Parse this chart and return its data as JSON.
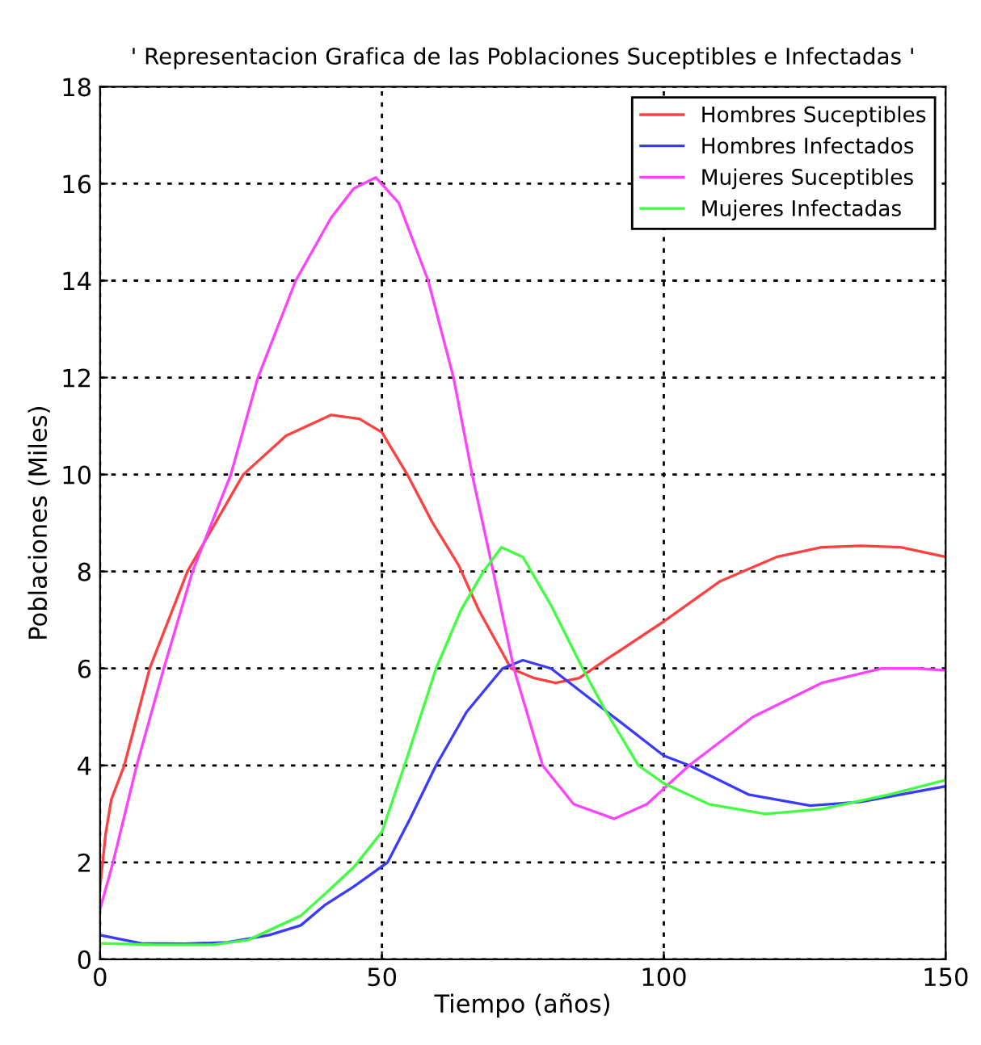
{
  "chart_data": {
    "type": "line",
    "title": "' Representacion Grafica de las Poblaciones Suceptibles e Infectadas '",
    "xlabel": "Tiempo (años)",
    "ylabel": "Poblaciones (Miles)",
    "xlim": [
      0,
      150
    ],
    "ylim": [
      0,
      18
    ],
    "xticks": [
      0,
      50,
      100,
      150
    ],
    "yticks": [
      0,
      2,
      4,
      6,
      8,
      10,
      12,
      14,
      16,
      18
    ],
    "grid": true,
    "legend": "top right",
    "line_style": "solid",
    "marker": "none",
    "series": [
      {
        "name": "Hombres Suceptibles",
        "color": "#ff4040",
        "x": [
          0,
          1,
          2,
          4.3,
          8.8,
          15.5,
          25.4,
          33,
          41,
          46,
          50,
          54.5,
          59,
          63.6,
          67.2,
          72.9,
          77,
          80.8,
          85,
          90,
          100,
          110,
          120,
          128,
          135,
          142,
          150
        ],
        "values": [
          1.5,
          2.6,
          3.3,
          4,
          6,
          8,
          10,
          10.8,
          11.23,
          11.15,
          10.87,
          10,
          9,
          8.13,
          7.2,
          6,
          5.8,
          5.7,
          5.8,
          6.2,
          6.97,
          7.8,
          8.3,
          8.5,
          8.53,
          8.5,
          8.3
        ]
      },
      {
        "name": "Hombres Infectados",
        "color": "#3a3aff",
        "x": [
          0,
          7.3,
          15,
          22.6,
          30,
          35.6,
          40,
          45,
          51,
          55,
          59.6,
          65,
          71.4,
          75,
          80,
          90,
          100,
          104.5,
          115,
          126,
          135,
          150
        ],
        "values": [
          0.5,
          0.33,
          0.32,
          0.35,
          0.5,
          0.7,
          1.13,
          1.5,
          2,
          2.9,
          4,
          5.1,
          6,
          6.17,
          6,
          5.1,
          4.2,
          4,
          3.4,
          3.17,
          3.25,
          3.57
        ]
      },
      {
        "name": "Mujeres Suceptibles",
        "color": "#ff40ff",
        "x": [
          0,
          2.3,
          6.5,
          11.3,
          16.4,
          23.2,
          28,
          34.7,
          41,
          45,
          48.9,
          53,
          58.2,
          62.7,
          66,
          69.5,
          73.4,
          78.5,
          84,
          91.2,
          97,
          104.5,
          115.8,
          128,
          138.7,
          145,
          150
        ],
        "values": [
          1.03,
          2,
          4,
          6,
          8,
          10,
          12,
          14,
          15.3,
          15.9,
          16.13,
          15.6,
          14,
          12,
          10,
          8.13,
          6,
          4,
          3.2,
          2.9,
          3.2,
          4,
          5,
          5.7,
          6,
          6,
          5.96
        ]
      },
      {
        "name": "Mujeres Infectadas",
        "color": "#40ff40",
        "x": [
          0,
          10,
          20,
          26.3,
          35.6,
          40,
          45,
          50,
          54,
          59.6,
          64,
          68,
          71.2,
          75,
          80,
          85.6,
          89.3,
          95.5,
          100,
          108,
          118,
          128,
          140,
          150
        ],
        "values": [
          0.33,
          0.3,
          0.3,
          0.4,
          0.9,
          1.36,
          1.9,
          2.63,
          4,
          6,
          7.2,
          8,
          8.5,
          8.3,
          7.3,
          6,
          5.2,
          4,
          3.63,
          3.2,
          3.0,
          3.1,
          3.4,
          3.7
        ]
      }
    ]
  }
}
